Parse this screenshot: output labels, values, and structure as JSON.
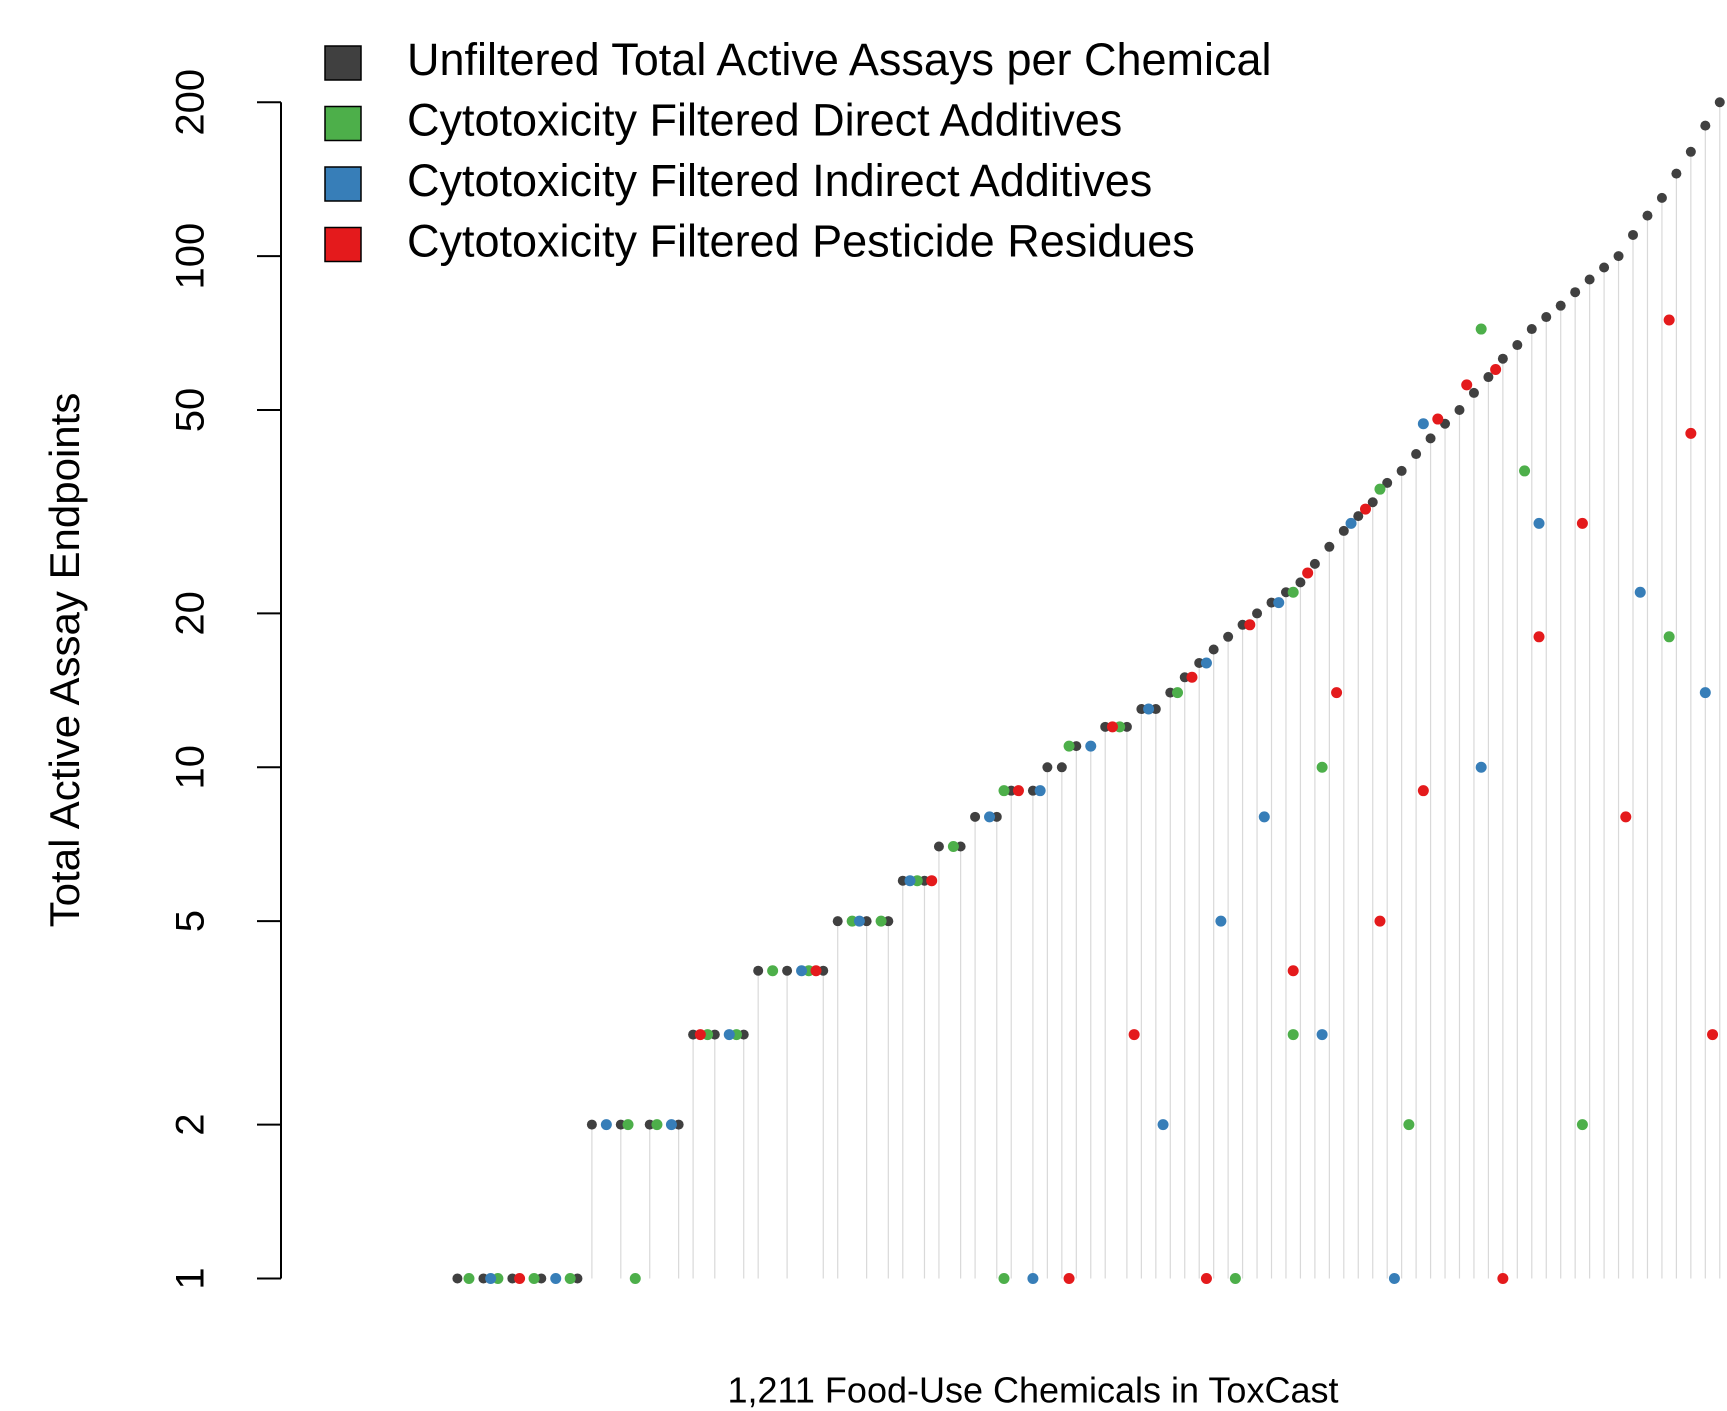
{
  "chart_data": {
    "type": "scatter",
    "xlabel": "1,211 Food-Use Chemicals in ToxCast",
    "ylabel": "Total Active Assay Endpoints",
    "ylog": true,
    "xlim": [
      0,
      1000
    ],
    "ylim": [
      0.8,
      260
    ],
    "yticks": [
      1,
      2,
      5,
      10,
      20,
      50,
      100,
      200
    ],
    "legend": "top-left",
    "stems": true,
    "stem_color": "#d9d9d9",
    "series": [
      {
        "name": "Unfiltered Total Active Assays per Chemical",
        "color": "#404040",
        "x": [
          122,
          140,
          160,
          180,
          205,
          215,
          235,
          255,
          275,
          285,
          300,
          320,
          330,
          350,
          375,
          385,
          405,
          420,
          430,
          445,
          455,
          470,
          480,
          495,
          505,
          520,
          530,
          540,
          550,
          560,
          570,
          585,
          595,
          605,
          615,
          625,
          635,
          645,
          655,
          665,
          675,
          685,
          695,
          705,
          715,
          725,
          735,
          745,
          755,
          765,
          775,
          785,
          795,
          805,
          815,
          825,
          835,
          845,
          855,
          865,
          875,
          885,
          895,
          905,
          915,
          925,
          935,
          945,
          955,
          965,
          975,
          985,
          995
        ],
        "values": [
          1,
          1,
          1,
          1,
          1,
          2,
          2,
          2,
          2,
          3,
          3,
          3,
          4,
          4,
          4,
          5,
          5,
          5,
          6,
          6,
          7,
          7,
          8,
          8,
          9,
          9,
          10,
          10,
          11,
          11,
          12,
          12,
          13,
          13,
          14,
          15,
          16,
          17,
          18,
          19,
          20,
          21,
          22,
          23,
          25,
          27,
          29,
          31,
          33,
          36,
          38,
          41,
          44,
          47,
          50,
          54,
          58,
          63,
          67,
          72,
          76,
          80,
          85,
          90,
          95,
          100,
          110,
          120,
          130,
          145,
          160,
          180,
          200
        ]
      },
      {
        "name": "Cytotoxicity Filtered Direct Additives",
        "color": "#4daf4a",
        "x": [
          130,
          150,
          175,
          200,
          240,
          260,
          295,
          315,
          340,
          365,
          395,
          415,
          440,
          465,
          500,
          545,
          580,
          620,
          700,
          760,
          830,
          245,
          500,
          660,
          700,
          720,
          780,
          860,
          900,
          960
        ],
        "values": [
          1,
          1,
          1,
          1,
          2,
          2,
          3,
          3,
          4,
          4,
          5,
          5,
          6,
          7,
          9,
          11,
          12,
          14,
          22,
          35,
          72,
          1,
          1,
          1,
          3,
          10,
          2,
          38,
          2,
          18
        ]
      },
      {
        "name": "Cytotoxicity Filtered Indirect Additives",
        "color": "#377eb8",
        "x": [
          145,
          190,
          225,
          270,
          310,
          360,
          400,
          435,
          490,
          525,
          560,
          600,
          640,
          690,
          740,
          790,
          520,
          610,
          650,
          680,
          720,
          770,
          830,
          870,
          940,
          985
        ],
        "values": [
          1,
          1,
          2,
          2,
          3,
          4,
          5,
          6,
          8,
          9,
          11,
          13,
          16,
          21,
          30,
          47,
          1,
          2,
          5,
          8,
          3,
          1,
          10,
          30,
          22,
          14
        ]
      },
      {
        "name": "Cytotoxicity Filtered Pesticide Residues",
        "color": "#e41a1c",
        "x": [
          165,
          290,
          370,
          450,
          510,
          575,
          630,
          670,
          710,
          750,
          800,
          820,
          840,
          545,
          590,
          640,
          700,
          730,
          760,
          790,
          845,
          870,
          900,
          930,
          960,
          975,
          990
        ],
        "values": [
          1,
          3,
          4,
          6,
          9,
          12,
          15,
          19,
          24,
          32,
          48,
          56,
          60,
          1,
          3,
          1,
          4,
          14,
          5,
          9,
          1,
          18,
          30,
          8,
          75,
          45,
          3
        ]
      }
    ]
  }
}
